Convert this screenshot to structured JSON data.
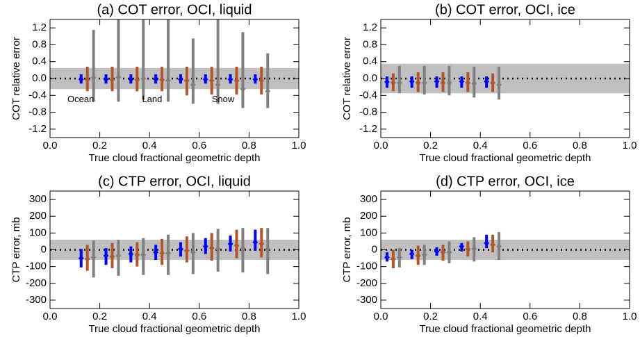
{
  "chart_data": [
    {
      "type": "errorbar",
      "title": "(a) COT error, OCI, liquid",
      "x_label": "True cloud fractional geometric depth",
      "y_label": "COT relative error",
      "xlim": [
        0,
        1
      ],
      "ylim": [
        -1.4,
        1.4
      ],
      "xticks": [
        {
          "value": 0,
          "label": "0.0"
        },
        0.2,
        0.4,
        0.6,
        0.8,
        {
          "value": 1,
          "label": "1.0"
        }
      ],
      "yticks": [
        1.2,
        0.8,
        0.4,
        {
          "value": 0,
          "label": "0.0"
        },
        -0.4,
        -0.8,
        -1.2
      ],
      "band": [
        -0.25,
        0.25
      ],
      "zero_line": 0,
      "series": [
        {
          "name": "Ocean",
          "color": "#0000ff",
          "x": [
            0.125,
            0.225,
            0.325,
            0.425,
            0.525,
            0.625,
            0.725,
            0.825
          ],
          "values": [
            -0.02,
            -0.02,
            -0.02,
            -0.02,
            -0.02,
            -0.02,
            -0.02,
            -0.02
          ],
          "lower": [
            -0.12,
            -0.12,
            -0.12,
            -0.12,
            -0.12,
            -0.12,
            -0.12,
            -0.12
          ],
          "upper": [
            0.1,
            0.1,
            0.1,
            0.1,
            0.1,
            0.1,
            0.1,
            0.1
          ]
        },
        {
          "name": "Land",
          "color": "#b5562a",
          "x": [
            0.15,
            0.25,
            0.35,
            0.45,
            0.55,
            0.65,
            0.75,
            0.85
          ],
          "values": [
            -0.03,
            -0.03,
            -0.03,
            -0.03,
            -0.05,
            -0.05,
            -0.05,
            -0.05
          ],
          "lower": [
            -0.3,
            -0.3,
            -0.3,
            -0.3,
            -0.4,
            -0.38,
            -0.38,
            -0.38
          ],
          "upper": [
            0.28,
            0.28,
            0.28,
            0.28,
            0.28,
            0.28,
            0.28,
            0.28
          ]
        },
        {
          "name": "Snow",
          "color": "#808080",
          "x": [
            0.175,
            0.275,
            0.375,
            0.475,
            0.575,
            0.675,
            0.775,
            0.875
          ],
          "values": [
            0.02,
            0.03,
            0.0,
            -0.05,
            -0.15,
            -0.15,
            -0.25,
            -0.3
          ],
          "lower": [
            -0.55,
            -0.55,
            -0.5,
            -0.55,
            -0.6,
            -0.6,
            -0.7,
            -0.7
          ],
          "upper": [
            1.15,
            1.4,
            1.4,
            1.4,
            0.95,
            1.4,
            1.1,
            0.6
          ]
        }
      ]
    },
    {
      "type": "errorbar",
      "title": "(b) COT error, OCI, ice",
      "x_label": "True cloud fractional geometric depth",
      "y_label": "COT relative error",
      "xlim": [
        0,
        1
      ],
      "ylim": [
        -1.4,
        1.4
      ],
      "xticks": [
        {
          "value": 0,
          "label": "0.0"
        },
        0.2,
        0.4,
        0.6,
        0.8,
        {
          "value": 1,
          "label": "1.0"
        }
      ],
      "yticks": [
        1.2,
        0.8,
        0.4,
        {
          "value": 0,
          "label": "0.0"
        },
        -0.4,
        -0.8,
        -1.2
      ],
      "band": [
        -0.35,
        0.35
      ],
      "zero_line": 0,
      "series": [
        {
          "color": "#0000ff",
          "x": [
            0.025,
            0.125,
            0.225,
            0.325,
            0.425
          ],
          "values": [
            -0.08,
            -0.07,
            -0.07,
            -0.07,
            -0.07
          ],
          "lower": [
            -0.22,
            -0.22,
            -0.22,
            -0.22,
            -0.22
          ],
          "upper": [
            0.05,
            0.05,
            0.05,
            0.05,
            0.05
          ]
        },
        {
          "color": "#b5562a",
          "x": [
            0.05,
            0.15,
            0.25,
            0.35,
            0.45
          ],
          "values": [
            -0.1,
            -0.1,
            -0.1,
            -0.1,
            -0.1
          ],
          "lower": [
            -0.3,
            -0.32,
            -0.32,
            -0.32,
            -0.32
          ],
          "upper": [
            0.12,
            0.15,
            0.15,
            0.15,
            0.12
          ]
        },
        {
          "color": "#808080",
          "x": [
            0.075,
            0.175,
            0.275,
            0.375,
            0.475
          ],
          "values": [
            -0.1,
            -0.1,
            -0.1,
            -0.12,
            -0.15
          ],
          "lower": [
            -0.35,
            -0.38,
            -0.4,
            -0.45,
            -0.5
          ],
          "upper": [
            0.3,
            0.3,
            0.3,
            0.28,
            0.28
          ]
        }
      ]
    },
    {
      "type": "errorbar",
      "title": "(c) CTP error, OCI, liquid",
      "x_label": "True cloud fractional geometric depth",
      "y_label": "CTP error, mb",
      "xlim": [
        0,
        1
      ],
      "ylim": [
        -350,
        350
      ],
      "xticks": [
        {
          "value": 0,
          "label": "0.0"
        },
        0.2,
        0.4,
        0.6,
        0.8,
        {
          "value": 1,
          "label": "1.0"
        }
      ],
      "yticks": [
        300,
        200,
        100,
        0,
        -100,
        -200,
        -300
      ],
      "band": [
        -60,
        60
      ],
      "zero_line": 0,
      "series": [
        {
          "color": "#0000ff",
          "x": [
            0.125,
            0.225,
            0.325,
            0.425,
            0.525,
            0.625,
            0.725,
            0.825
          ],
          "values": [
            -50,
            -35,
            -25,
            -15,
            5,
            20,
            35,
            45
          ],
          "lower": [
            -105,
            -90,
            -75,
            -60,
            -40,
            -25,
            -10,
            -5
          ],
          "upper": [
            5,
            10,
            20,
            30,
            45,
            70,
            85,
            120
          ]
        },
        {
          "color": "#b5562a",
          "x": [
            0.15,
            0.25,
            0.35,
            0.45,
            0.55,
            0.65,
            0.75,
            0.85
          ],
          "values": [
            -55,
            -40,
            -30,
            -20,
            -5,
            10,
            25,
            35
          ],
          "lower": [
            -125,
            -110,
            -100,
            -90,
            -75,
            -65,
            -50,
            -45
          ],
          "upper": [
            30,
            40,
            45,
            65,
            80,
            100,
            120,
            130
          ]
        },
        {
          "color": "#808080",
          "x": [
            0.175,
            0.275,
            0.375,
            0.475,
            0.575,
            0.675,
            0.775,
            0.875
          ],
          "values": [
            -45,
            -35,
            -30,
            -20,
            -15,
            5,
            10,
            5
          ],
          "lower": [
            -165,
            -155,
            -150,
            -150,
            -145,
            -130,
            -135,
            -145
          ],
          "upper": [
            55,
            60,
            70,
            90,
            100,
            125,
            130,
            130
          ]
        }
      ]
    },
    {
      "type": "errorbar",
      "title": "(d) CTP error, OCI, ice",
      "x_label": "True cloud fractional geometric depth",
      "y_label": "CTP error, mb",
      "xlim": [
        0,
        1
      ],
      "ylim": [
        -350,
        350
      ],
      "xticks": [
        {
          "value": 0,
          "label": "0.0"
        },
        0.2,
        0.4,
        0.6,
        0.8,
        {
          "value": 1,
          "label": "1.0"
        }
      ],
      "yticks": [
        300,
        200,
        100,
        0,
        -100,
        -200,
        -300
      ],
      "band": [
        -60,
        60
      ],
      "zero_line": 0,
      "series": [
        {
          "color": "#0000ff",
          "x": [
            0.025,
            0.125,
            0.225,
            0.325,
            0.425
          ],
          "values": [
            -45,
            -25,
            -10,
            20,
            40
          ],
          "lower": [
            -70,
            -55,
            -35,
            -10,
            10
          ],
          "upper": [
            -15,
            0,
            15,
            40,
            90
          ]
        },
        {
          "color": "#b5562a",
          "x": [
            0.05,
            0.15,
            0.25,
            0.35,
            0.45
          ],
          "values": [
            -55,
            -35,
            -15,
            5,
            30
          ],
          "lower": [
            -110,
            -90,
            -65,
            -40,
            -15
          ],
          "upper": [
            0,
            25,
            30,
            50,
            90
          ]
        },
        {
          "color": "#808080",
          "x": [
            0.075,
            0.175,
            0.275,
            0.375,
            0.475
          ],
          "values": [
            -45,
            -30,
            -15,
            5,
            20
          ],
          "lower": [
            -105,
            -90,
            -80,
            -70,
            -60
          ],
          "upper": [
            10,
            30,
            50,
            75,
            105
          ]
        }
      ]
    }
  ]
}
